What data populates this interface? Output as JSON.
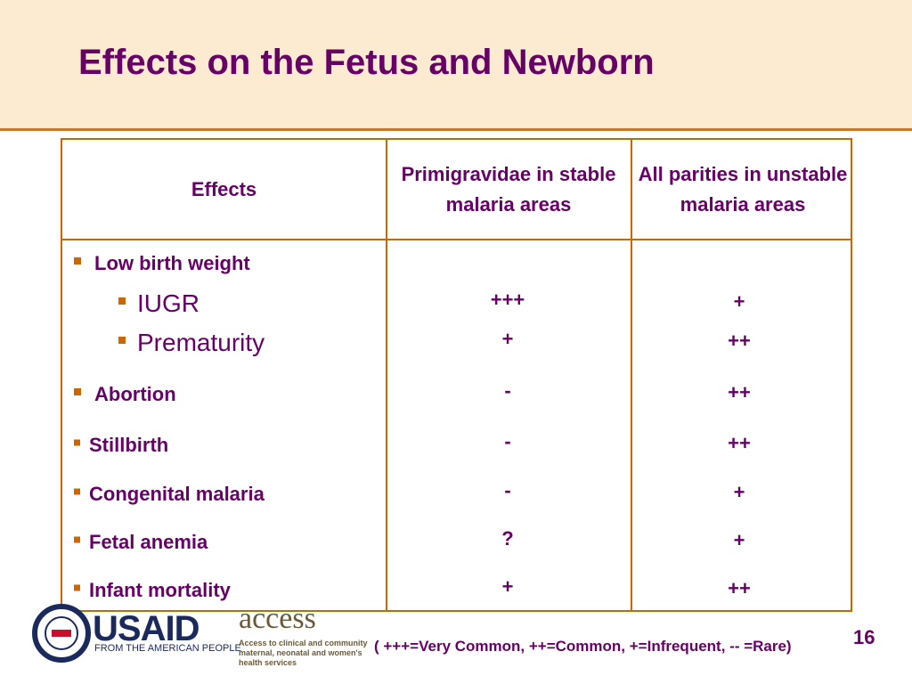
{
  "header": {
    "title": "Effects on the Fetus and Newborn"
  },
  "table": {
    "columns": [
      "Effects",
      "Primigravidae in stable malaria areas",
      "All parities in unstable malaria areas"
    ],
    "rows": [
      {
        "effect": "Low birth weight",
        "level": 1
      },
      {
        "effect": "IUGR",
        "level": 2,
        "primigravidae": "+++",
        "all_parities": "+"
      },
      {
        "effect": "Prematurity",
        "level": 2,
        "primigravidae": "+",
        "all_parities": "++"
      },
      {
        "effect": "Abortion",
        "level": 1,
        "primigravidae": "-",
        "all_parities": "++"
      },
      {
        "effect": "Stillbirth",
        "level": 1,
        "primigravidae": "-",
        "all_parities": "++"
      },
      {
        "effect": "Congenital malaria",
        "level": 1,
        "primigravidae": "-",
        "all_parities": "+"
      },
      {
        "effect": "Fetal anemia",
        "level": 1,
        "primigravidae": "?",
        "all_parities": "+"
      },
      {
        "effect": "Infant mortality",
        "level": 1,
        "primigravidae": "+",
        "all_parities": "++"
      }
    ]
  },
  "footer": {
    "legend": "( +++=Very Common, ++=Common, +=Infrequent, -- =Rare)",
    "page_number": "16",
    "usaid": "USAID",
    "usaid_tagline": "FROM THE AMERICAN PEOPLE",
    "access": "access",
    "access_tagline": "Access to clinical and community maternal, neonatal and women's health services"
  }
}
